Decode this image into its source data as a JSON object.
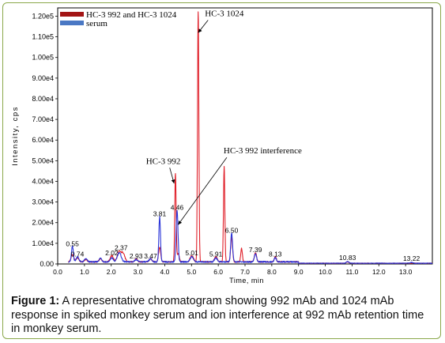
{
  "chart_data": {
    "type": "line",
    "xlabel": "Time, min",
    "ylabel": "Intensity, cps",
    "xlim": [
      0,
      14
    ],
    "ylim": [
      0,
      124000
    ],
    "x_ticks": [
      "0.0",
      "1.0",
      "2.0",
      "3.0",
      "4.0",
      "5.0",
      "6.0",
      "7.0",
      "8.0",
      "9.0",
      "10.0",
      "11.0",
      "12.0",
      "13.0"
    ],
    "y_ticks": [
      {
        "value": 0,
        "label": "0.00"
      },
      {
        "value": 10000,
        "label": "1.00e4"
      },
      {
        "value": 20000,
        "label": "2.00e4"
      },
      {
        "value": 30000,
        "label": "3.00e4"
      },
      {
        "value": 40000,
        "label": "4.00e4"
      },
      {
        "value": 50000,
        "label": "5.00e4"
      },
      {
        "value": 60000,
        "label": "6.00e4"
      },
      {
        "value": 70000,
        "label": "7.00e4"
      },
      {
        "value": 80000,
        "label": "8.00e4"
      },
      {
        "value": 90000,
        "label": "9.00e4"
      },
      {
        "value": 100000,
        "label": "1.00e5"
      },
      {
        "value": 110000,
        "label": "1.10e5"
      },
      {
        "value": 120000,
        "label": "1.20e5"
      }
    ],
    "legend_position": "top-left",
    "series": [
      {
        "name": "HC-3 992 and HC-3 1024",
        "color": "#e0202a",
        "legend_color": "#a31515",
        "peaks": [
          {
            "x": 0.55,
            "h": 3500,
            "w": 0.05
          },
          {
            "x": 0.74,
            "h": 2000,
            "w": 0.05
          },
          {
            "x": 1.05,
            "h": 1200,
            "w": 0.05
          },
          {
            "x": 1.6,
            "h": 1500,
            "w": 0.05
          },
          {
            "x": 2.02,
            "h": 3000,
            "w": 0.06
          },
          {
            "x": 2.3,
            "h": 5000,
            "w": 0.07
          },
          {
            "x": 2.45,
            "h": 4000,
            "w": 0.06
          },
          {
            "x": 2.93,
            "h": 1500,
            "w": 0.05
          },
          {
            "x": 3.47,
            "h": 1500,
            "w": 0.05
          },
          {
            "x": 3.81,
            "h": 7000,
            "w": 0.04
          },
          {
            "x": 4.4,
            "h": 43000,
            "w": 0.025
          },
          {
            "x": 4.5,
            "h": 4000,
            "w": 0.04
          },
          {
            "x": 5.01,
            "h": 3000,
            "w": 0.06
          },
          {
            "x": 5.25,
            "h": 122000,
            "w": 0.025
          },
          {
            "x": 5.91,
            "h": 2500,
            "w": 0.05
          },
          {
            "x": 6.22,
            "h": 46000,
            "w": 0.025
          },
          {
            "x": 6.5,
            "h": 12000,
            "w": 0.035
          },
          {
            "x": 6.87,
            "h": 6500,
            "w": 0.03
          },
          {
            "x": 7.39,
            "h": 4500,
            "w": 0.04
          },
          {
            "x": 8.13,
            "h": 2500,
            "w": 0.04
          },
          {
            "x": 10.83,
            "h": 600,
            "w": 0.05
          }
        ]
      },
      {
        "name": "serum",
        "color": "#2a35d8",
        "legend_color": "#4a78c4",
        "peaks": [
          {
            "x": 0.55,
            "h": 7500,
            "w": 0.035
          },
          {
            "x": 0.74,
            "h": 2500,
            "w": 0.05
          },
          {
            "x": 1.05,
            "h": 1500,
            "w": 0.05
          },
          {
            "x": 1.6,
            "h": 1800,
            "w": 0.05
          },
          {
            "x": 2.02,
            "h": 2000,
            "w": 0.05
          },
          {
            "x": 2.3,
            "h": 4500,
            "w": 0.07
          },
          {
            "x": 2.93,
            "h": 1200,
            "w": 0.05
          },
          {
            "x": 3.47,
            "h": 1500,
            "w": 0.05
          },
          {
            "x": 3.81,
            "h": 22000,
            "w": 0.03
          },
          {
            "x": 4.46,
            "h": 25000,
            "w": 0.035
          },
          {
            "x": 5.01,
            "h": 2500,
            "w": 0.06
          },
          {
            "x": 5.91,
            "h": 2000,
            "w": 0.05
          },
          {
            "x": 6.5,
            "h": 14000,
            "w": 0.035
          },
          {
            "x": 7.39,
            "h": 4000,
            "w": 0.04
          },
          {
            "x": 8.13,
            "h": 2000,
            "w": 0.04
          },
          {
            "x": 10.83,
            "h": 800,
            "w": 0.05
          },
          {
            "x": 13.22,
            "h": 400,
            "w": 0.05
          }
        ]
      }
    ],
    "peak_labels": [
      {
        "x": 0.55,
        "y": 7500,
        "text": "0.55"
      },
      {
        "x": 0.74,
        "y": 2500,
        "text": "0.74"
      },
      {
        "x": 2.02,
        "y": 3000,
        "text": "2.02"
      },
      {
        "x": 2.37,
        "y": 5500,
        "text": "2.37"
      },
      {
        "x": 2.93,
        "y": 1500,
        "text": "2.93"
      },
      {
        "x": 3.47,
        "y": 1500,
        "text": "3.47"
      },
      {
        "x": 3.81,
        "y": 22000,
        "text": "3.81"
      },
      {
        "x": 4.46,
        "y": 25000,
        "text": "4.46"
      },
      {
        "x": 5.01,
        "y": 3000,
        "text": "5.01"
      },
      {
        "x": 5.91,
        "y": 2500,
        "text": "5.91"
      },
      {
        "x": 6.5,
        "y": 14000,
        "text": "6.50"
      },
      {
        "x": 7.39,
        "y": 4500,
        "text": "7.39"
      },
      {
        "x": 8.13,
        "y": 2500,
        "text": "8.13"
      },
      {
        "x": 10.83,
        "y": 800,
        "text": "10.83"
      },
      {
        "x": 13.22,
        "y": 400,
        "text": "13.22"
      }
    ],
    "annotations": [
      {
        "text": "HC-3 1024",
        "target_x": 5.25,
        "target_y": 112000,
        "text_x": 5.5,
        "text_y": 120000
      },
      {
        "text": "HC-3 992",
        "target_x": 4.35,
        "target_y": 39000,
        "text_x": 3.3,
        "text_y": 48500
      },
      {
        "text": "HC-3 992 interference",
        "target_x": 4.5,
        "target_y": 19000,
        "text_x": 6.2,
        "text_y": 53500
      }
    ]
  },
  "caption": {
    "label": "Figure 1:",
    "text": " A representative chromatogram showing 992 mAb and 1024 mAb response in spiked monkey serum and ion interference at 992 mAb retention time in monkey serum."
  }
}
